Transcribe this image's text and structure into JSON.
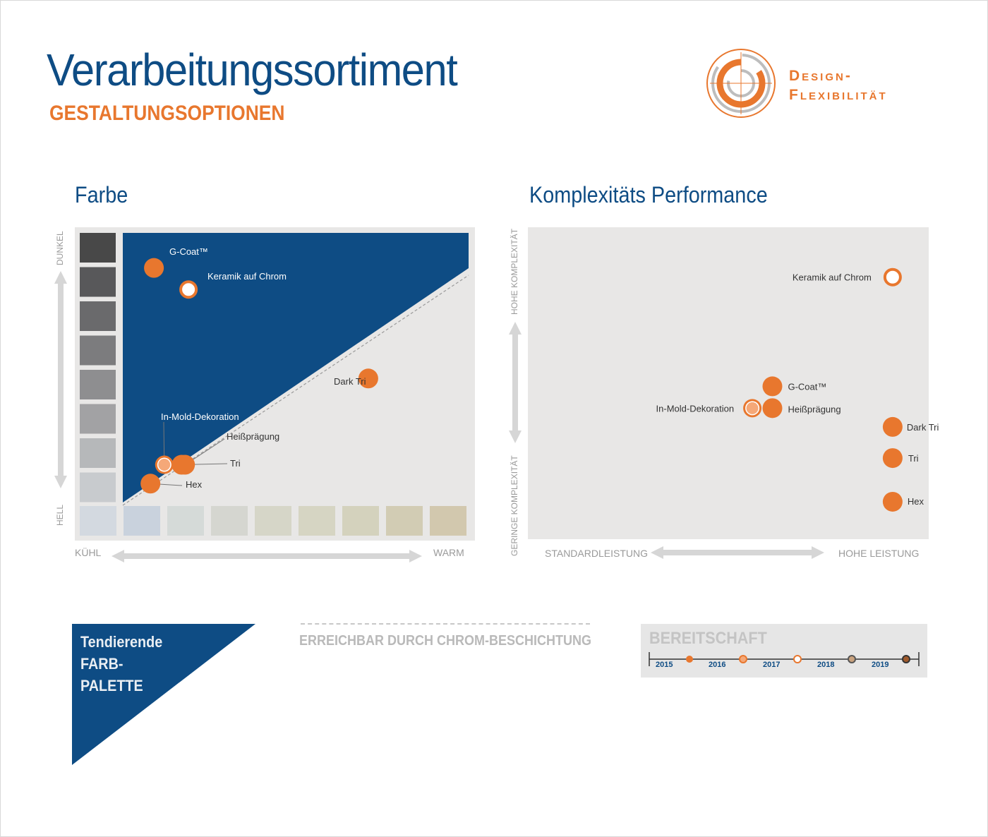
{
  "header": {
    "title": "Verarbeitungssortiment",
    "subtitle": "GESTALTUNGSOPTIONEN",
    "logo_text_line1": "Design-",
    "logo_text_line2": "Flexibilität"
  },
  "colors": {
    "brand_blue": "#0e4c84",
    "accent_orange": "#e8772e",
    "light_orange": "#f5a878",
    "panel_grey": "#e8e7e6"
  },
  "chart_data": [
    {
      "type": "scatter",
      "title": "Farbe",
      "xlabel_left": "KÜHL",
      "xlabel_right": "WARM",
      "ylabel_top": "DUNKEL",
      "ylabel_bottom": "HELL",
      "legend": "none",
      "points": [
        {
          "name": "G-Coat™",
          "x": 0.09,
          "y": 0.87,
          "marker": "filled"
        },
        {
          "name": "Keramik auf Chrom",
          "x": 0.19,
          "y": 0.79,
          "marker": "hollow"
        },
        {
          "name": "Dark Tri",
          "x": 0.71,
          "y": 0.46,
          "marker": "filled"
        },
        {
          "name": "In-Mold-Dekoration",
          "x": 0.12,
          "y": 0.14,
          "marker": "light"
        },
        {
          "name": "Heißprägung",
          "x": 0.18,
          "y": 0.14,
          "marker": "filled"
        },
        {
          "name": "Tri",
          "x": 0.17,
          "y": 0.14,
          "marker": "filled"
        },
        {
          "name": "Hex",
          "x": 0.08,
          "y": 0.07,
          "marker": "filled"
        }
      ]
    },
    {
      "type": "scatter",
      "title": "Komplexitäts Performance",
      "xlabel_left": "STANDARDLEISTUNG",
      "xlabel_right": "HOHE LEISTUNG",
      "ylabel_top": "HOHE KOMPLEXITÄT",
      "ylabel_bottom": "GERINGE KOMPLEXITÄT",
      "legend": "none",
      "points": [
        {
          "name": "Keramik auf Chrom",
          "x": 0.91,
          "y": 0.84,
          "marker": "hollow"
        },
        {
          "name": "G-Coat™",
          "x": 0.61,
          "y": 0.49,
          "marker": "filled"
        },
        {
          "name": "In-Mold-Dekoration",
          "x": 0.56,
          "y": 0.42,
          "marker": "light"
        },
        {
          "name": "Heißprägung",
          "x": 0.61,
          "y": 0.42,
          "marker": "filled"
        },
        {
          "name": "Dark Tri",
          "x": 0.91,
          "y": 0.36,
          "marker": "filled"
        },
        {
          "name": "Tri",
          "x": 0.91,
          "y": 0.26,
          "marker": "filled"
        },
        {
          "name": "Hex",
          "x": 0.91,
          "y": 0.12,
          "marker": "filled"
        }
      ]
    }
  ],
  "legend": {
    "triangle_line1": "Tendierende",
    "triangle_line2": "FARB-",
    "triangle_line3": "PALETTE",
    "dashed_text": "ERREICHBAR DURCH CHROM-BESCHICHTUNG",
    "readiness_title": "BEREITSCHAFT",
    "years": [
      "2015",
      "2016",
      "2017",
      "2018",
      "2019"
    ]
  }
}
